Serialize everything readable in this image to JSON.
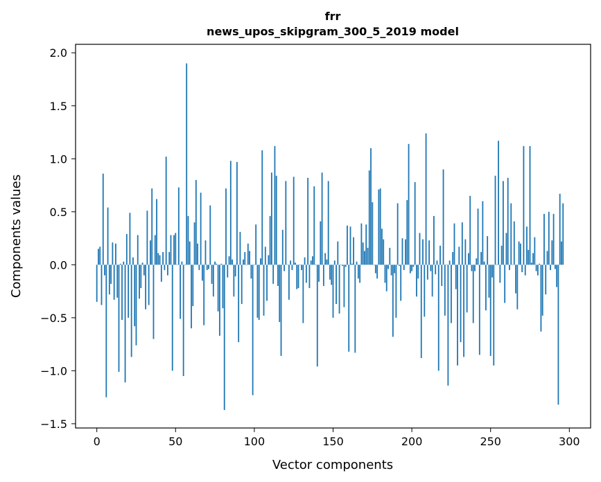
{
  "chart_data": {
    "type": "bar",
    "title_lines": [
      "frr",
      "news_upos_skipgram_300_5_2019 model"
    ],
    "xlabel": "Vector components",
    "ylabel": "Components values",
    "xlim": [
      -13.5,
      313.5
    ],
    "ylim": [
      -1.54,
      2.08
    ],
    "xticks": [
      0,
      50,
      100,
      150,
      200,
      250,
      300
    ],
    "yticks": [
      -1.5,
      -1.0,
      -0.5,
      0.0,
      0.5,
      1.0,
      1.5,
      2.0
    ],
    "ytick_labels": [
      "−1.5",
      "−1.0",
      "−0.5",
      "0.0",
      "0.5",
      "1.0",
      "1.5",
      "2.0"
    ],
    "grid": false,
    "bar_color": "#1f77b4",
    "values": [
      -0.35,
      0.15,
      0.17,
      -0.38,
      0.86,
      -0.1,
      -1.25,
      0.54,
      -0.28,
      -0.18,
      0.21,
      -0.33,
      0.2,
      -0.31,
      -1.01,
      0.01,
      -0.52,
      0.03,
      -1.11,
      0.29,
      -0.5,
      0.49,
      -0.87,
      0.07,
      -0.58,
      -0.76,
      0.28,
      -0.32,
      -0.22,
      0.02,
      -0.1,
      -0.42,
      0.51,
      -0.38,
      0.23,
      0.72,
      -0.7,
      0.28,
      0.62,
      0.11,
      0.09,
      -0.16,
      0.12,
      -0.05,
      1.02,
      -0.1,
      0.12,
      0.28,
      -1.0,
      0.28,
      0.3,
      0.0,
      0.73,
      -0.51,
      0.03,
      -1.05,
      0.0,
      1.9,
      0.46,
      0.22,
      -0.6,
      -0.39,
      0.4,
      0.8,
      0.2,
      -0.05,
      0.68,
      -0.15,
      -0.57,
      0.23,
      -0.05,
      -0.04,
      0.56,
      -0.18,
      -0.3,
      0.03,
      0.01,
      -0.44,
      -0.67,
      0.01,
      -0.41,
      -1.37,
      0.72,
      -0.12,
      0.08,
      0.98,
      0.05,
      -0.3,
      -0.11,
      0.97,
      -0.73,
      0.31,
      -0.37,
      0.05,
      0.12,
      0.0,
      0.2,
      0.13,
      -0.13,
      -1.23,
      0.0,
      0.38,
      -0.5,
      -0.52,
      0.06,
      1.08,
      -0.48,
      0.17,
      -0.34,
      0.09,
      0.46,
      0.87,
      -0.18,
      1.12,
      0.84,
      -0.2,
      -0.54,
      -0.86,
      0.33,
      -0.06,
      0.79,
      0.0,
      -0.33,
      0.04,
      -0.05,
      0.83,
      0.02,
      -0.23,
      -0.22,
      0.0,
      -0.05,
      -0.55,
      0.07,
      -0.17,
      0.82,
      -0.22,
      0.04,
      0.08,
      0.74,
      0.0,
      -0.96,
      -0.16,
      0.41,
      0.87,
      -0.2,
      0.11,
      0.05,
      0.79,
      -0.14,
      -0.19,
      -0.5,
      0.04,
      -0.37,
      0.22,
      -0.46,
      0.0,
      -0.01,
      -0.4,
      -0.02,
      0.37,
      -0.82,
      0.36,
      0.01,
      0.26,
      -0.83,
      0.03,
      -0.13,
      -0.17,
      0.39,
      0.21,
      0.13,
      0.38,
      0.16,
      0.89,
      1.1,
      0.59,
      0.0,
      -0.08,
      -0.13,
      0.71,
      0.72,
      0.34,
      0.24,
      -0.17,
      -0.25,
      -0.04,
      0.16,
      -0.1,
      -0.68,
      -0.08,
      -0.5,
      0.58,
      -0.01,
      -0.34,
      0.25,
      -0.05,
      0.24,
      0.61,
      1.14,
      -0.08,
      -0.06,
      -0.02,
      0.78,
      -0.3,
      -0.13,
      0.3,
      -0.88,
      0.24,
      -0.49,
      1.24,
      -0.14,
      0.23,
      -0.06,
      -0.3,
      0.46,
      -0.09,
      0.04,
      -1.0,
      0.18,
      -0.2,
      0.9,
      -0.48,
      0.0,
      -1.14,
      0.04,
      -0.55,
      0.12,
      0.39,
      -0.23,
      -0.95,
      0.17,
      -0.73,
      0.4,
      -0.87,
      0.24,
      -0.45,
      0.11,
      0.65,
      -0.06,
      -0.55,
      -0.06,
      0.06,
      0.53,
      -0.85,
      0.12,
      0.6,
      0.03,
      -0.43,
      0.27,
      -0.31,
      -0.86,
      -0.12,
      -0.95,
      0.84,
      0.0,
      1.17,
      -0.17,
      0.18,
      0.79,
      -0.36,
      0.3,
      0.82,
      -0.05,
      0.58,
      0.0,
      0.41,
      -0.27,
      -0.42,
      0.22,
      0.2,
      -0.07,
      1.12,
      -0.1,
      0.36,
      0.14,
      1.12,
      0.02,
      0.11,
      0.26,
      -0.06,
      -0.1,
      0.01,
      -0.63,
      -0.48,
      0.48,
      -0.28,
      0.13,
      0.5,
      -0.05,
      0.23,
      0.48,
      -0.04,
      -0.21,
      -1.32,
      0.67,
      0.22,
      0.58
    ]
  }
}
